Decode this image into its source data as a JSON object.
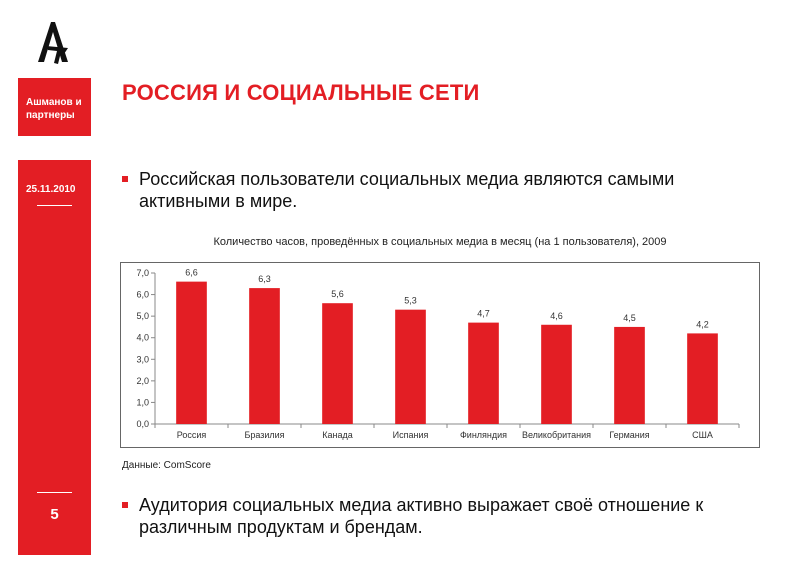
{
  "sidebar": {
    "company_name": "Ашманов и партнеры",
    "date": "25.11.2010",
    "page_number": "5"
  },
  "colors": {
    "accent": "#e31e24"
  },
  "logo_icon": "arrow-a-logo-icon",
  "title": "РОССИЯ И СОЦИАЛЬНЫЕ СЕТИ",
  "bullets": [
    "Российская пользователи социальных медиа являются самыми активными в мире.",
    "Аудитория социальных медиа активно выражает своё отношение к различным продуктам и брендам."
  ],
  "chart_data": {
    "type": "bar",
    "title": "Количество часов, проведённых в социальных медиа в месяц (на 1 пользователя), 2009",
    "categories": [
      "Россия",
      "Бразилия",
      "Канада",
      "Испания",
      "Финляндия",
      "Великобритания",
      "Германия",
      "США"
    ],
    "values": [
      6.6,
      6.3,
      5.6,
      5.3,
      4.7,
      4.6,
      4.5,
      4.2
    ],
    "value_labels": [
      "6,6",
      "6,3",
      "5,6",
      "5,3",
      "4,7",
      "4,6",
      "4,5",
      "4,2"
    ],
    "ylim": [
      0,
      7
    ],
    "yticks": [
      "0,0",
      "1,0",
      "2,0",
      "3,0",
      "4,0",
      "5,0",
      "6,0",
      "7,0"
    ],
    "xlabel": "",
    "ylabel": "",
    "grid": false,
    "legend": "none",
    "bar_color": "#e31e24"
  },
  "source": "Данные: ComScore"
}
